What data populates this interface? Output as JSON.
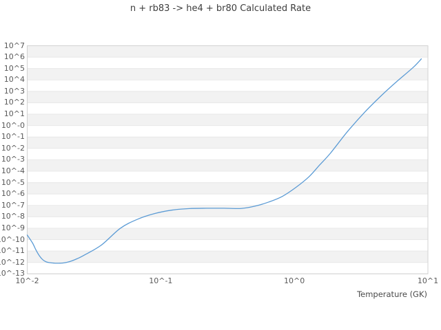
{
  "chart_data": {
    "type": "line",
    "title": "n + rb83 -> he4 + br80 Calculated Rate",
    "xlabel": "Temperature (GK)",
    "ylabel": "",
    "x_scale": "log",
    "y_scale": "log",
    "x_range_log": [
      -2,
      1
    ],
    "y_range_log": [
      -13,
      7
    ],
    "x_tick_labels": [
      "10^-2",
      "10^-1",
      "10^0",
      "10^1"
    ],
    "x_tick_logs": [
      -2,
      -1,
      0,
      1
    ],
    "y_tick_labels": [
      "10^7",
      "10^6",
      "10^5",
      "10^4",
      "10^3",
      "10^2",
      "10^1",
      "10^-0",
      "10^-1",
      "10^-2",
      "10^-3",
      "10^-4",
      "10^-5",
      "10^-6",
      "10^-7",
      "10^-8",
      "10^-9",
      "10^-10",
      "10^-11",
      "10^-12",
      "10^-13"
    ],
    "y_tick_logs": [
      7,
      6,
      5,
      4,
      3,
      2,
      1,
      0,
      -1,
      -2,
      -3,
      -4,
      -5,
      -6,
      -7,
      -8,
      -9,
      -10,
      -11,
      -12,
      -13
    ],
    "grid": "alternating-horizontal-bands",
    "legend": "none",
    "series": [
      {
        "name": "calculated rate",
        "color": "#5b9bd5",
        "log_points": [
          [
            -2.0,
            -9.6
          ],
          [
            -1.96,
            -10.3
          ],
          [
            -1.935,
            -10.9
          ],
          [
            -1.91,
            -11.4
          ],
          [
            -1.885,
            -11.75
          ],
          [
            -1.858,
            -11.95
          ],
          [
            -1.833,
            -12.02
          ],
          [
            -1.8,
            -12.06
          ],
          [
            -1.776,
            -12.07
          ],
          [
            -1.73,
            -12.05
          ],
          [
            -1.678,
            -11.91
          ],
          [
            -1.626,
            -11.67
          ],
          [
            -1.575,
            -11.37
          ],
          [
            -1.446,
            -10.49
          ],
          [
            -1.302,
            -9.0
          ],
          [
            -1.173,
            -8.21
          ],
          [
            -1.044,
            -7.71
          ],
          [
            -0.915,
            -7.41
          ],
          [
            -0.786,
            -7.28
          ],
          [
            -0.657,
            -7.25
          ],
          [
            -0.528,
            -7.25
          ],
          [
            -0.399,
            -7.27
          ],
          [
            -0.296,
            -7.07
          ],
          [
            -0.193,
            -6.71
          ],
          [
            -0.09,
            -6.21
          ],
          [
            0.013,
            -5.41
          ],
          [
            0.111,
            -4.47
          ],
          [
            0.19,
            -3.45
          ],
          [
            0.271,
            -2.41
          ],
          [
            0.399,
            -0.51
          ],
          [
            0.528,
            1.19
          ],
          [
            0.657,
            2.69
          ],
          [
            0.76,
            3.79
          ],
          [
            0.889,
            5.09
          ],
          [
            0.951,
            5.85
          ]
        ]
      }
    ]
  },
  "colors": {
    "background": "#ffffff",
    "band": "#f2f2f2",
    "grid_line": "#e8e8e8",
    "spine": "#d2d2d2",
    "title_text": "#3d3d3d",
    "tick_text": "#595959"
  }
}
